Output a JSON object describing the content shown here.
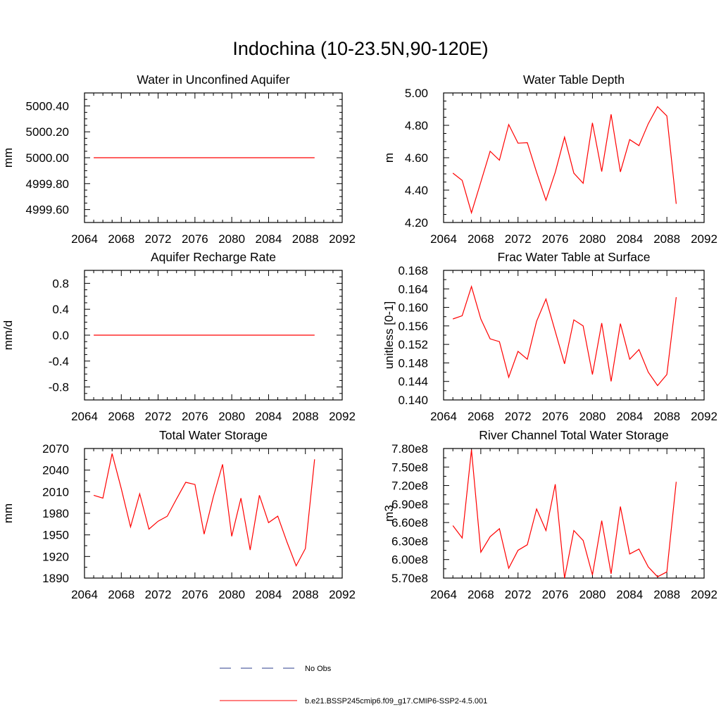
{
  "title": "Indochina (10-23.5N,90-120E)",
  "legend": {
    "placement": "bottom",
    "items": [
      {
        "label": "No Obs",
        "color": "#2c3e8c",
        "dashed": true
      },
      {
        "label": "b.e21.BSSP245cmip6.f09_g17.CMIP6-SSP2-4.5.001",
        "color": "#ff0000",
        "dashed": false
      }
    ]
  },
  "chart_data": [
    {
      "type": "line",
      "title": "Water in Unconfined Aquifer",
      "ylabel": "mm",
      "xlim": [
        2064,
        2092
      ],
      "ylim": [
        4999.5,
        5000.5
      ],
      "xticks": [
        2064,
        2068,
        2072,
        2076,
        2080,
        2084,
        2088,
        2092
      ],
      "yticks": [
        4999.6,
        4999.8,
        5000.0,
        5000.2,
        5000.4
      ],
      "ytick_labels": [
        "4999.60",
        "4999.80",
        "5000.00",
        "5000.20",
        "5000.40"
      ],
      "series": [
        {
          "color": "#ff0000",
          "x": [
            2065,
            2066,
            2067,
            2068,
            2069,
            2070,
            2071,
            2072,
            2073,
            2074,
            2075,
            2076,
            2077,
            2078,
            2079,
            2080,
            2081,
            2082,
            2083,
            2084,
            2085,
            2086,
            2087,
            2088,
            2089
          ],
          "values": [
            5000,
            5000,
            5000,
            5000,
            5000,
            5000,
            5000,
            5000,
            5000,
            5000,
            5000,
            5000,
            5000,
            5000,
            5000,
            5000,
            5000,
            5000,
            5000,
            5000,
            5000,
            5000,
            5000,
            5000,
            5000
          ]
        }
      ]
    },
    {
      "type": "line",
      "title": "Water Table Depth",
      "ylabel": "m",
      "xlim": [
        2064,
        2092
      ],
      "ylim": [
        4.2,
        5.0
      ],
      "xticks": [
        2064,
        2068,
        2072,
        2076,
        2080,
        2084,
        2088,
        2092
      ],
      "yticks": [
        4.2,
        4.4,
        4.6,
        4.8,
        5.0
      ],
      "ytick_labels": [
        "4.20",
        "4.40",
        "4.60",
        "4.80",
        "5.00"
      ],
      "series": [
        {
          "color": "#ff0000",
          "x": [
            2065,
            2066,
            2067,
            2068,
            2069,
            2070,
            2071,
            2072,
            2073,
            2074,
            2075,
            2076,
            2077,
            2078,
            2079,
            2080,
            2081,
            2082,
            2083,
            2084,
            2085,
            2086,
            2087,
            2088,
            2089
          ],
          "values": [
            4.505,
            4.46,
            4.26,
            4.45,
            4.64,
            4.585,
            4.805,
            4.69,
            4.693,
            4.51,
            4.338,
            4.51,
            4.727,
            4.505,
            4.442,
            4.815,
            4.515,
            4.868,
            4.512,
            4.712,
            4.675,
            4.81,
            4.915,
            4.858,
            4.315
          ]
        }
      ]
    },
    {
      "type": "line",
      "title": "Aquifer Recharge Rate",
      "ylabel": "mm/d",
      "xlim": [
        2064,
        2092
      ],
      "ylim": [
        -1.0,
        1.0
      ],
      "xticks": [
        2064,
        2068,
        2072,
        2076,
        2080,
        2084,
        2088,
        2092
      ],
      "yticks": [
        -0.8,
        -0.4,
        0.0,
        0.4,
        0.8
      ],
      "ytick_labels": [
        "-0.8",
        "-0.4",
        "0.0",
        "0.4",
        "0.8"
      ],
      "series": [
        {
          "color": "#ff0000",
          "x": [
            2065,
            2066,
            2067,
            2068,
            2069,
            2070,
            2071,
            2072,
            2073,
            2074,
            2075,
            2076,
            2077,
            2078,
            2079,
            2080,
            2081,
            2082,
            2083,
            2084,
            2085,
            2086,
            2087,
            2088,
            2089
          ],
          "values": [
            0,
            0,
            0,
            0,
            0,
            0,
            0,
            0,
            0,
            0,
            0,
            0,
            0,
            0,
            0,
            0,
            0,
            0,
            0,
            0,
            0,
            0,
            0,
            0,
            0
          ]
        }
      ]
    },
    {
      "type": "line",
      "title": "Frac Water Table at Surface",
      "ylabel": "unitless [0-1]",
      "xlim": [
        2064,
        2092
      ],
      "ylim": [
        0.14,
        0.168
      ],
      "xticks": [
        2064,
        2068,
        2072,
        2076,
        2080,
        2084,
        2088,
        2092
      ],
      "yticks": [
        0.14,
        0.144,
        0.148,
        0.152,
        0.156,
        0.16,
        0.164,
        0.168
      ],
      "ytick_labels": [
        "0.140",
        "0.144",
        "0.148",
        "0.152",
        "0.156",
        "0.160",
        "0.164",
        "0.168"
      ],
      "series": [
        {
          "color": "#ff0000",
          "x": [
            2065,
            2066,
            2067,
            2068,
            2069,
            2070,
            2071,
            2072,
            2073,
            2074,
            2075,
            2076,
            2077,
            2078,
            2079,
            2080,
            2081,
            2082,
            2083,
            2084,
            2085,
            2086,
            2087,
            2088,
            2089
          ],
          "values": [
            0.1575,
            0.1582,
            0.1645,
            0.1575,
            0.1532,
            0.1526,
            0.1449,
            0.1505,
            0.1488,
            0.157,
            0.1618,
            0.1548,
            0.1478,
            0.1573,
            0.156,
            0.1455,
            0.1566,
            0.144,
            0.1565,
            0.1488,
            0.1509,
            0.146,
            0.1431,
            0.1455,
            0.1622
          ]
        }
      ]
    },
    {
      "type": "line",
      "title": "Total Water Storage",
      "ylabel": "mm",
      "xlim": [
        2064,
        2092
      ],
      "ylim": [
        1890,
        2070
      ],
      "xticks": [
        2064,
        2068,
        2072,
        2076,
        2080,
        2084,
        2088,
        2092
      ],
      "yticks": [
        1890,
        1920,
        1950,
        1980,
        2010,
        2040,
        2070
      ],
      "ytick_labels": [
        "1890",
        "1920",
        "1950",
        "1980",
        "2010",
        "2040",
        "2070"
      ],
      "series": [
        {
          "color": "#ff0000",
          "x": [
            2065,
            2066,
            2067,
            2068,
            2069,
            2070,
            2071,
            2072,
            2073,
            2074,
            2075,
            2076,
            2077,
            2078,
            2079,
            2080,
            2081,
            2082,
            2083,
            2084,
            2085,
            2086,
            2087,
            2088,
            2089
          ],
          "values": [
            2005,
            2001,
            2063,
            2014,
            1961,
            2007,
            1958,
            1969,
            1976,
            2000,
            2023,
            2020,
            1951,
            2003,
            2048,
            1948,
            2001,
            1929,
            2005,
            1967,
            1976,
            1940,
            1907,
            1931,
            2055
          ]
        }
      ]
    },
    {
      "type": "line",
      "title": "River Channel Total Water Storage",
      "ylabel": "m3",
      "xlim": [
        2064,
        2092
      ],
      "ylim": [
        570000000,
        780000000
      ],
      "xticks": [
        2064,
        2068,
        2072,
        2076,
        2080,
        2084,
        2088,
        2092
      ],
      "yticks": [
        570000000,
        600000000,
        630000000,
        660000000,
        690000000,
        720000000,
        750000000,
        780000000
      ],
      "ytick_labels": [
        "5.70e8",
        "6.00e8",
        "6.30e8",
        "6.60e8",
        "6.90e8",
        "7.20e8",
        "7.50e8",
        "7.80e8"
      ],
      "series": [
        {
          "color": "#ff0000",
          "x": [
            2065,
            2066,
            2067,
            2068,
            2069,
            2070,
            2071,
            2072,
            2073,
            2074,
            2075,
            2076,
            2077,
            2078,
            2079,
            2080,
            2081,
            2082,
            2083,
            2084,
            2085,
            2086,
            2087,
            2088,
            2089
          ],
          "values": [
            655000000,
            635000000,
            778000000,
            612000000,
            637000000,
            650000000,
            586000000,
            615000000,
            624000000,
            682000000,
            647000000,
            722000000,
            570000000,
            647000000,
            631000000,
            575000000,
            663000000,
            577000000,
            686000000,
            609000000,
            617000000,
            588000000,
            572000000,
            580000000,
            726000000
          ]
        }
      ]
    }
  ]
}
